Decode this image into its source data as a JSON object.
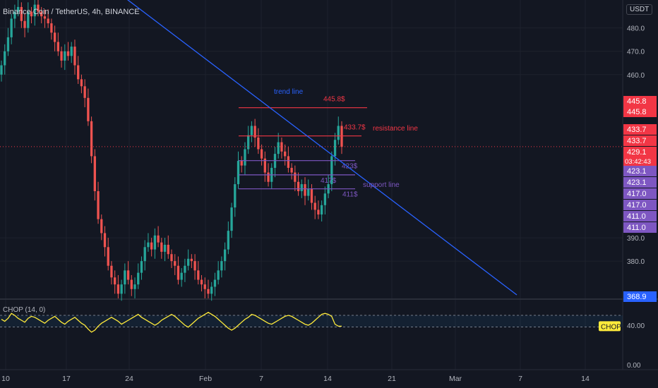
{
  "header": {
    "title": "Binance Coin / TetherUS, 4h, BINANCE",
    "currency": "USDT"
  },
  "indicator": {
    "legend": "CHOP (14, 0)",
    "badge": "CHOP"
  },
  "colors": {
    "background": "#131722",
    "up": "#26a69a",
    "down": "#ef5350",
    "trend": "#2962ff",
    "resistance": "#f23645",
    "support": "#7e57c2",
    "chop": "#ffeb3b"
  },
  "chart_data": {
    "type": "candlestick",
    "title": "Binance Coin / TetherUS, 4h, BINANCE",
    "x_tick_labels": [
      "10",
      "17",
      "24",
      "Feb",
      "7",
      "14",
      "21",
      "Mar",
      "7",
      "14"
    ],
    "y_tick_labels": [
      "480.0",
      "470.0",
      "460.0",
      "390.0",
      "380.0"
    ],
    "ylim": [
      364,
      492
    ],
    "price_scale_labels": [
      {
        "text": "445.8",
        "value": 445.8,
        "color": "#f23645"
      },
      {
        "text": "445.8",
        "value": 445.8,
        "color": "#f23645"
      },
      {
        "text": "433.7",
        "value": 433.7,
        "color": "#f23645"
      },
      {
        "text": "433.7",
        "value": 433.7,
        "color": "#f23645"
      },
      {
        "text": "429.1",
        "value": 429.1,
        "color": "#f23645",
        "countdown": "03:42:43"
      },
      {
        "text": "423.1",
        "value": 423.1,
        "color": "#7e57c2"
      },
      {
        "text": "423.1",
        "value": 423.1,
        "color": "#7e57c2"
      },
      {
        "text": "417.0",
        "value": 417.0,
        "color": "#7e57c2"
      },
      {
        "text": "417.0",
        "value": 417.0,
        "color": "#7e57c2"
      },
      {
        "text": "411.0",
        "value": 411.0,
        "color": "#7e57c2"
      },
      {
        "text": "411.0",
        "value": 411.0,
        "color": "#7e57c2"
      },
      {
        "text": "368.9",
        "value": 368.9,
        "color": "#2962ff"
      }
    ],
    "levels": [
      {
        "kind": "resistance",
        "value": 445.8,
        "label": "445.8$"
      },
      {
        "kind": "resistance",
        "value": 433.7,
        "label": "433.7$"
      },
      {
        "kind": "support",
        "value": 423.1,
        "label": "423$"
      },
      {
        "kind": "support",
        "value": 417.0,
        "label": "417$"
      },
      {
        "kind": "support",
        "value": 411.0,
        "label": "411$"
      }
    ],
    "annotations": {
      "trend_line": "trend line",
      "resistance_line": "resistance line",
      "support_line": "support line"
    },
    "trend_line": {
      "from": [
        "Jan 12",
        500
      ],
      "to": [
        "Mar 7",
        369
      ]
    },
    "current_price": 429.1,
    "candles_close": [
      464,
      470,
      476,
      484,
      487,
      489,
      483,
      480,
      487,
      485,
      490,
      487,
      485,
      484,
      482,
      478,
      474,
      470,
      466,
      470,
      468,
      472,
      464,
      458,
      455,
      450,
      440,
      425,
      410,
      398,
      392,
      386,
      378,
      373,
      370,
      366,
      370,
      376,
      372,
      368,
      370,
      375,
      380,
      386,
      388,
      385,
      391,
      388,
      384,
      387,
      383,
      380,
      378,
      372,
      375,
      378,
      381,
      380,
      376,
      372,
      370,
      368,
      366,
      369,
      372,
      376,
      380,
      385,
      393,
      403,
      413,
      423,
      421,
      428,
      434,
      438,
      433,
      428,
      424,
      418,
      414,
      420,
      426,
      431,
      427,
      425,
      420,
      418,
      414,
      410,
      413,
      408,
      411,
      405,
      402,
      400,
      404,
      409,
      413,
      425,
      432,
      438,
      429
    ],
    "chop_axis": [
      "40.00",
      "0.00"
    ],
    "chop_ylim": [
      -5,
      65
    ],
    "chop_bands": [
      50,
      38.2
    ],
    "chop_values": [
      46,
      44,
      47,
      52,
      50,
      47,
      45,
      43,
      47,
      49,
      48,
      46,
      44,
      42,
      45,
      47,
      49,
      46,
      43,
      41,
      44,
      46,
      48,
      45,
      42,
      40,
      36,
      33,
      35,
      39,
      42,
      44,
      46,
      48,
      46,
      44,
      41,
      43,
      45,
      47,
      49,
      51,
      48,
      46,
      44,
      42,
      40,
      42,
      45,
      47,
      49,
      51,
      49,
      46,
      43,
      40,
      38,
      41,
      44,
      47,
      49,
      51,
      53,
      51,
      49,
      46,
      43,
      40,
      37,
      35,
      37,
      40,
      43,
      46,
      48,
      51,
      50,
      48,
      46,
      44,
      42,
      41,
      43,
      45,
      47,
      49,
      50,
      49,
      47,
      45,
      43,
      41,
      40,
      42,
      45,
      48,
      51,
      52,
      51,
      49,
      41,
      39,
      39
    ]
  }
}
